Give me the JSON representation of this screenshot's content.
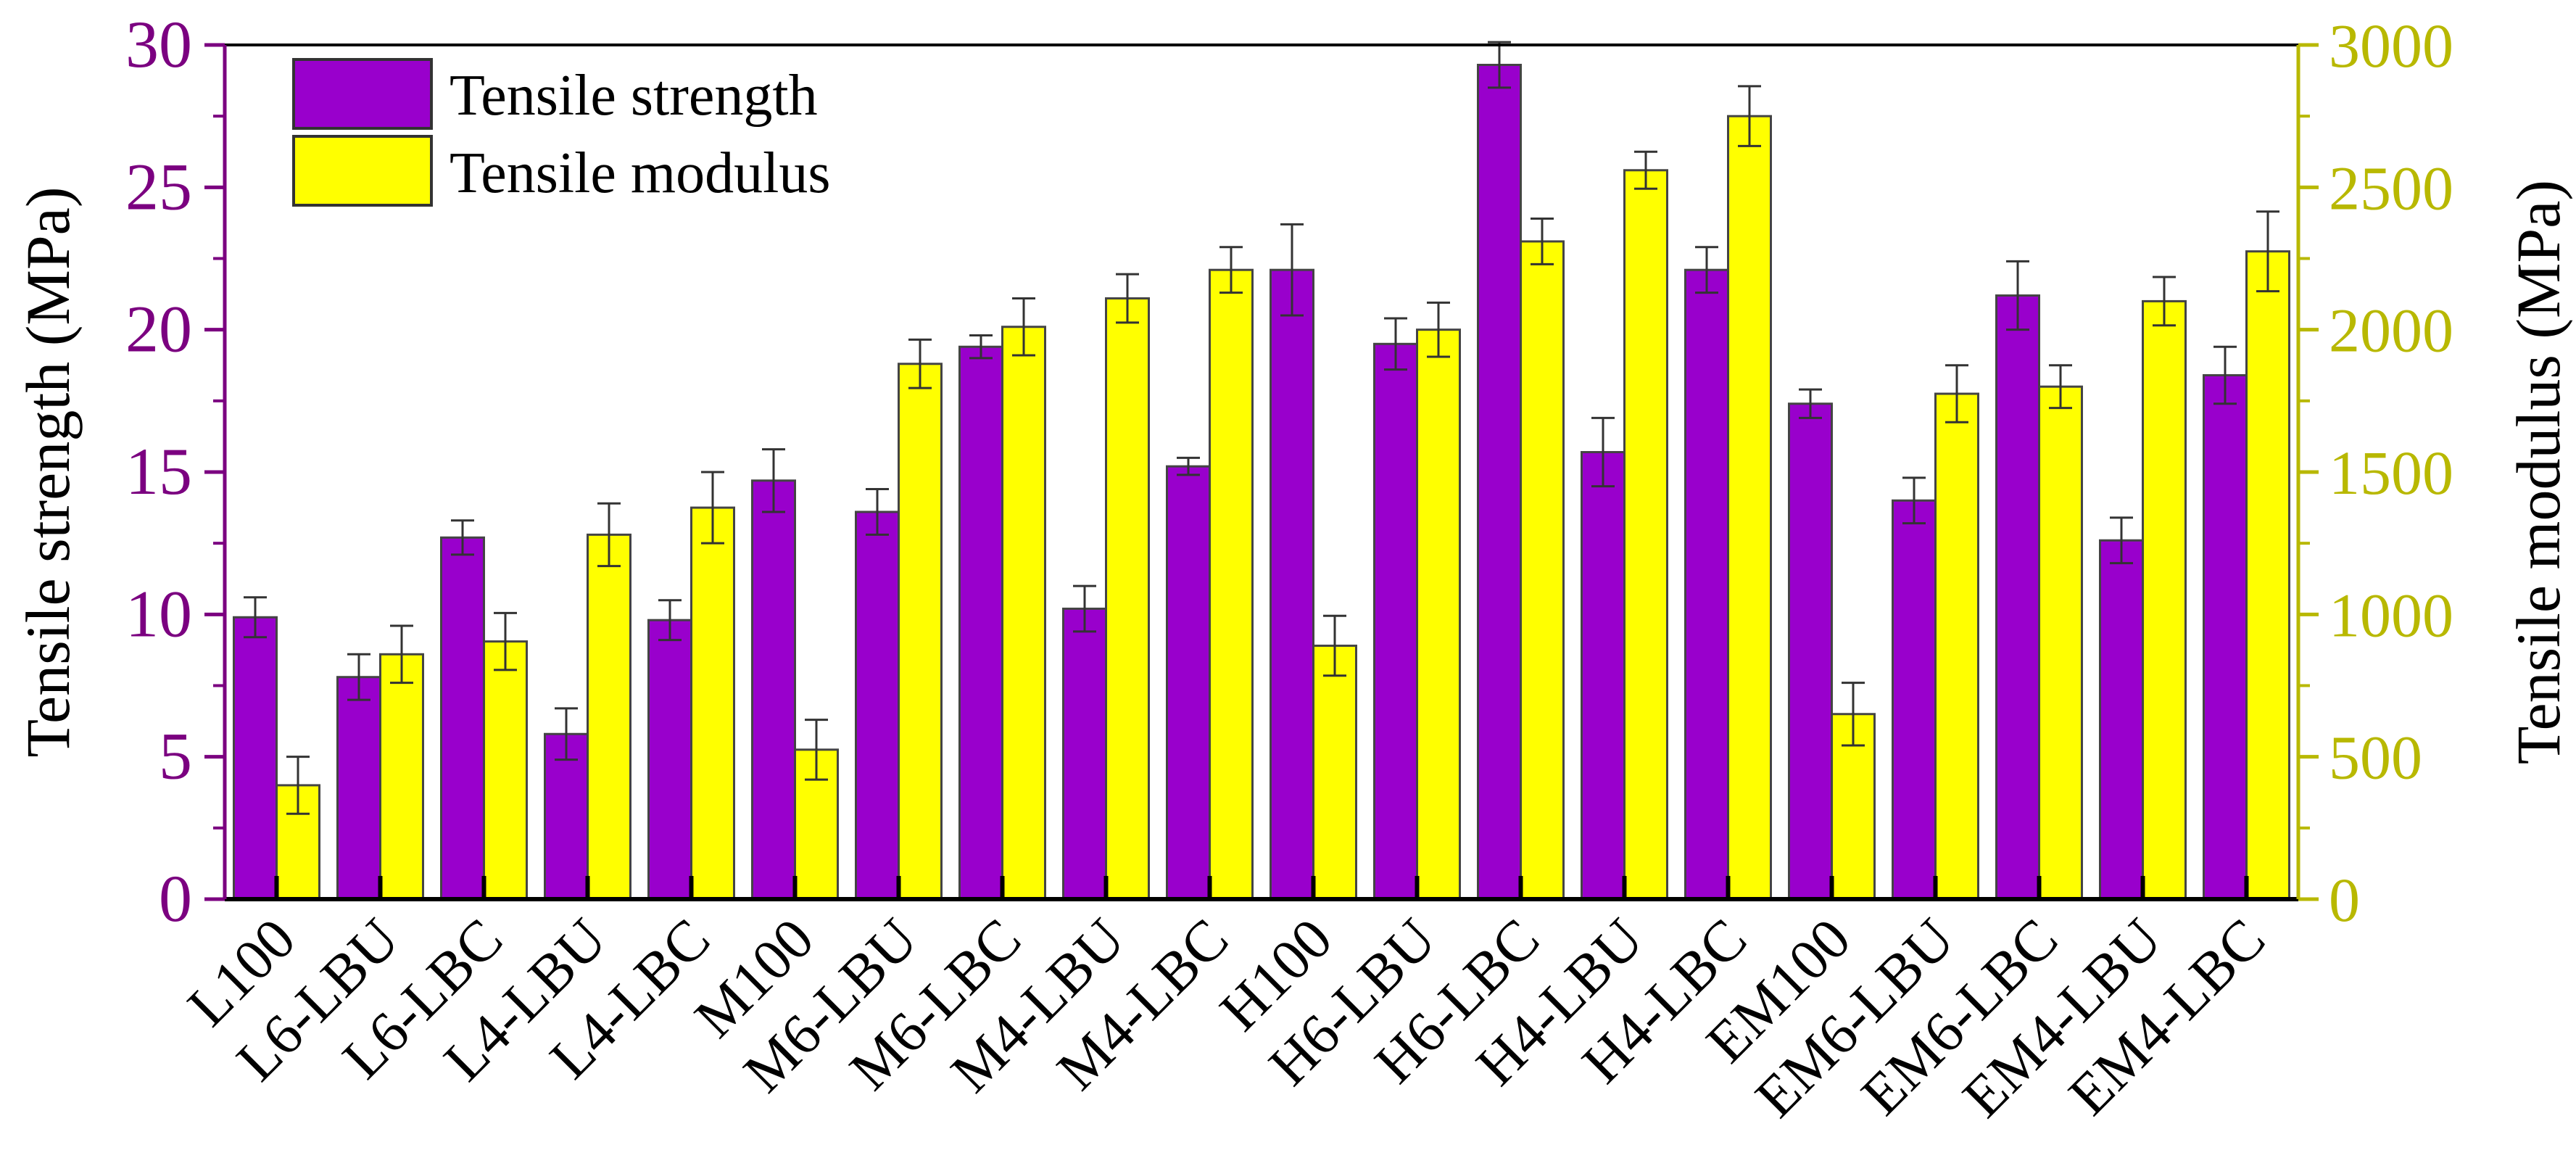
{
  "chart_data": {
    "type": "bar",
    "categories": [
      "L100",
      "L6-LBU",
      "L6-LBC",
      "L4-LBU",
      "L4-LBC",
      "M100",
      "M6-LBU",
      "M6-LBC",
      "M4-LBU",
      "M4-LBC",
      "H100",
      "H6-LBU",
      "H6-LBC",
      "H4-LBU",
      "H4-LBC",
      "EM100",
      "EM6-LBU",
      "EM6-LBC",
      "EM4-LBU",
      "EM4-LBC"
    ],
    "series": [
      {
        "name": "Tensile strength",
        "axis": "left",
        "color": "#9900CC",
        "values": [
          9.9,
          7.8,
          12.7,
          5.8,
          9.8,
          14.7,
          13.6,
          19.4,
          10.2,
          15.2,
          22.1,
          19.5,
          29.3,
          15.7,
          22.1,
          17.4,
          14.0,
          21.2,
          12.6,
          18.4
        ],
        "errors": [
          0.7,
          0.8,
          0.6,
          0.9,
          0.7,
          1.1,
          0.8,
          0.4,
          0.8,
          0.3,
          1.6,
          0.9,
          0.8,
          1.2,
          0.8,
          0.5,
          0.8,
          1.2,
          0.8,
          1.0
        ]
      },
      {
        "name": "Tensile modulus",
        "axis": "right",
        "color": "#FFFF00",
        "values": [
          400,
          860,
          905,
          1280,
          1375,
          525,
          1880,
          2010,
          2110,
          2210,
          890,
          2000,
          2310,
          2560,
          2750,
          650,
          1775,
          1800,
          2100,
          2275
        ],
        "errors": [
          100,
          100,
          100,
          110,
          125,
          105,
          85,
          100,
          85,
          80,
          105,
          95,
          80,
          65,
          105,
          110,
          100,
          75,
          85,
          140
        ]
      }
    ],
    "ylabel": "Tensile strength (MPa)",
    "y2label": "Tensile modulus (MPa)",
    "ylim": [
      0,
      30
    ],
    "y2lim": [
      0,
      3000
    ],
    "yticks": [
      0,
      5,
      10,
      15,
      20,
      25,
      30
    ],
    "y2ticks": [
      0,
      500,
      1000,
      1500,
      2000,
      2500,
      3000
    ],
    "left_axis_color": "#7B0080",
    "right_axis_color": "#B8B800",
    "legend": {
      "position": "top-left",
      "entries": [
        "Tensile strength",
        "Tensile modulus"
      ]
    },
    "grid": false
  }
}
